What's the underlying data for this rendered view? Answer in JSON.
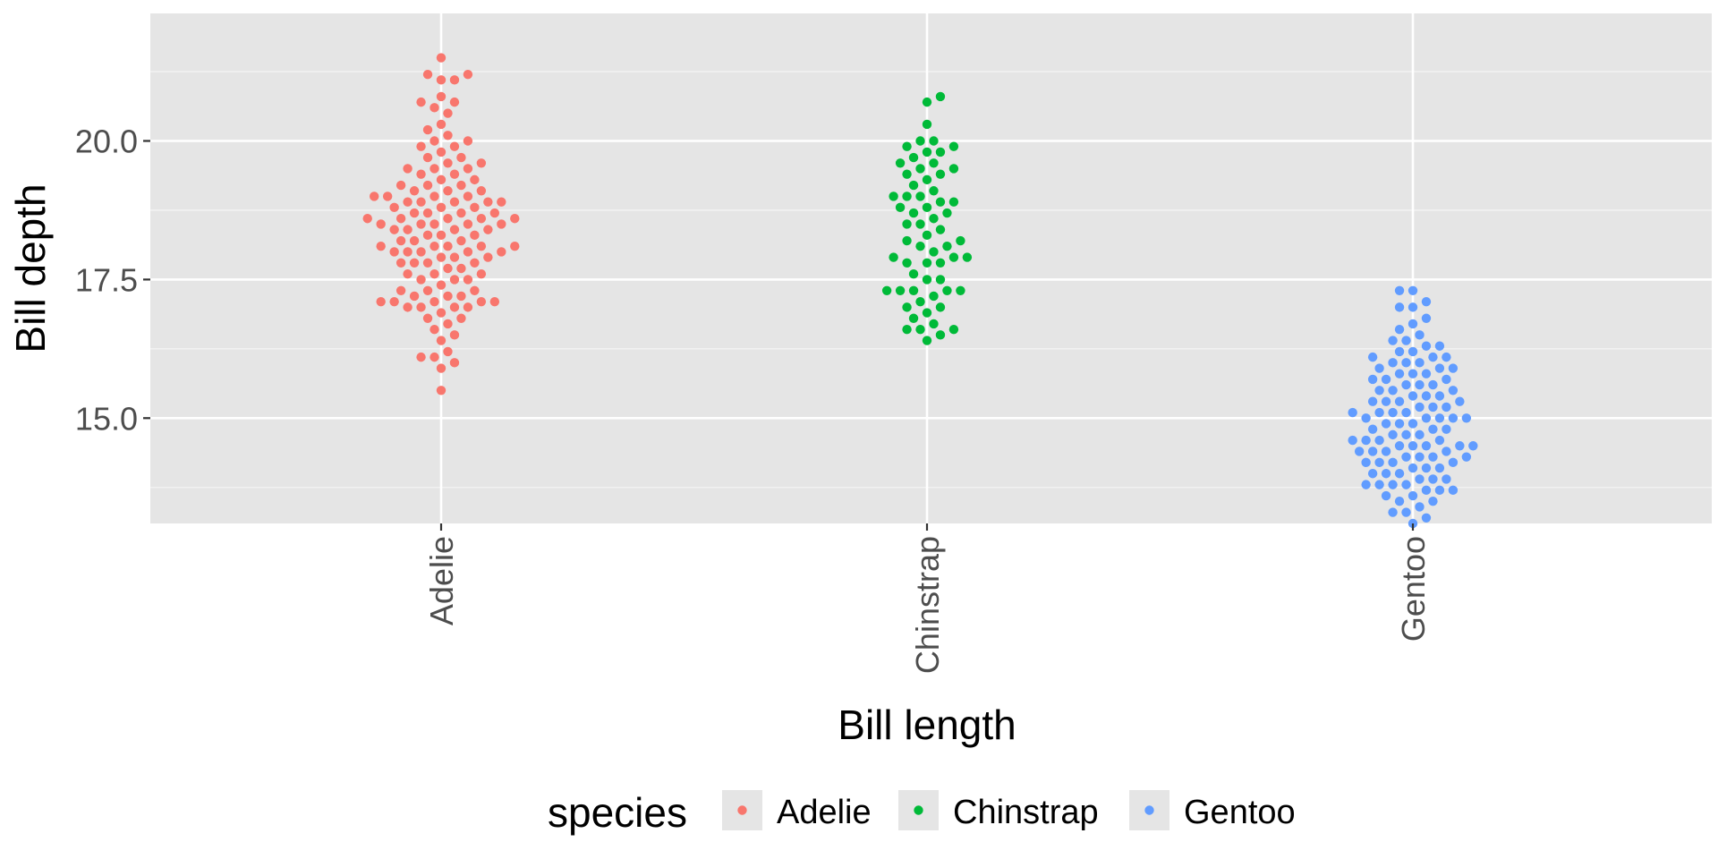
{
  "chart_data": {
    "type": "scatter",
    "subtype": "beeswarm",
    "xlabel": "Bill length",
    "ylabel": "Bill depth",
    "categories": [
      "Adelie",
      "Chinstrap",
      "Gentoo"
    ],
    "y_ticks": [
      "15.0",
      "17.5",
      "20.0"
    ],
    "ylim": [
      13.1,
      22.3
    ],
    "grid": true,
    "legend": {
      "title": "species",
      "position": "bottom",
      "entries": [
        "Adelie",
        "Chinstrap",
        "Gentoo"
      ]
    },
    "colors": {
      "Adelie": "#F8766D",
      "Chinstrap": "#00BA38",
      "Gentoo": "#619CFF",
      "panel": "#E5E5E5",
      "grid": "#FFFFFF"
    },
    "series": [
      {
        "name": "Adelie",
        "values": [
          15.5,
          15.9,
          16.0,
          16.1,
          16.1,
          16.2,
          16.5,
          16.6,
          16.7,
          16.8,
          16.9,
          17.0,
          17.0,
          17.0,
          17.0,
          17.1,
          17.1,
          17.1,
          17.1,
          17.2,
          17.2,
          17.2,
          17.3,
          17.3,
          17.4,
          17.5,
          17.5,
          17.6,
          17.6,
          17.7,
          17.7,
          17.8,
          17.8,
          17.8,
          17.9,
          17.9,
          17.9,
          18.0,
          18.0,
          18.0,
          18.0,
          18.1,
          18.1,
          18.1,
          18.1,
          18.2,
          18.2,
          18.3,
          18.3,
          18.4,
          18.4,
          18.4,
          18.5,
          18.5,
          18.5,
          18.5,
          18.5,
          18.6,
          18.6,
          18.6,
          18.6,
          18.7,
          18.7,
          18.7,
          18.8,
          18.8,
          18.8,
          18.9,
          18.9,
          18.9,
          18.9,
          19.0,
          19.0,
          19.0,
          19.0,
          19.1,
          19.1,
          19.2,
          19.2,
          19.3,
          19.3,
          19.4,
          19.4,
          19.5,
          19.5,
          19.5,
          19.6,
          19.7,
          19.7,
          19.8,
          19.9,
          20.0,
          20.0,
          20.1,
          20.2,
          20.3,
          20.5,
          20.6,
          20.7,
          20.7,
          21.1,
          21.1,
          21.2,
          21.2,
          21.5,
          18.0,
          18.4,
          17.6,
          18.9,
          19.1,
          17.3,
          16.8,
          18.2,
          19.9,
          17.5,
          18.6,
          19.2,
          16.4,
          18.1,
          19.6,
          17.8,
          18.3,
          20.8,
          17.1,
          18.7
        ]
      },
      {
        "name": "Chinstrap",
        "values": [
          16.4,
          16.5,
          16.6,
          16.6,
          16.6,
          16.7,
          16.8,
          17.0,
          17.0,
          17.1,
          17.3,
          17.3,
          17.3,
          17.3,
          17.3,
          17.5,
          17.5,
          17.8,
          17.8,
          17.8,
          17.9,
          17.9,
          17.9,
          18.1,
          18.1,
          18.2,
          18.2,
          18.3,
          18.4,
          18.5,
          18.6,
          18.7,
          18.7,
          18.8,
          18.8,
          18.9,
          19.0,
          19.0,
          19.0,
          19.1,
          19.2,
          19.4,
          19.4,
          19.5,
          19.5,
          19.6,
          19.6,
          19.7,
          19.8,
          19.8,
          19.9,
          19.9,
          20.0,
          20.0,
          20.3,
          20.7,
          20.8,
          18.9,
          17.6,
          18.5,
          16.9,
          19.3,
          18.0,
          17.2
        ]
      },
      {
        "name": "Gentoo",
        "values": [
          13.1,
          13.2,
          13.3,
          13.4,
          13.5,
          13.5,
          13.6,
          13.7,
          13.7,
          13.7,
          13.8,
          13.8,
          13.8,
          13.9,
          13.9,
          14.0,
          14.0,
          14.1,
          14.1,
          14.2,
          14.2,
          14.2,
          14.3,
          14.3,
          14.3,
          14.4,
          14.4,
          14.4,
          14.5,
          14.5,
          14.5,
          14.5,
          14.6,
          14.6,
          14.6,
          14.7,
          14.7,
          14.8,
          14.8,
          14.9,
          14.9,
          15.0,
          15.0,
          15.0,
          15.0,
          15.1,
          15.1,
          15.1,
          15.2,
          15.2,
          15.3,
          15.3,
          15.3,
          15.4,
          15.4,
          15.5,
          15.5,
          15.6,
          15.6,
          15.7,
          15.7,
          15.7,
          15.8,
          15.8,
          15.8,
          15.9,
          15.9,
          16.0,
          16.0,
          16.0,
          16.1,
          16.1,
          16.2,
          16.2,
          16.3,
          16.3,
          16.4,
          16.5,
          16.6,
          16.8,
          17.0,
          17.0,
          17.1,
          17.3,
          17.3,
          14.0,
          14.9,
          15.2,
          13.9,
          14.6,
          15.4,
          16.1,
          14.3,
          15.0,
          13.6,
          14.8,
          15.6,
          14.4,
          15.9,
          13.3,
          14.2,
          15.1,
          16.4,
          14.7,
          15.5,
          13.8,
          16.7,
          14.1,
          15.3,
          14.5
        ]
      }
    ]
  }
}
